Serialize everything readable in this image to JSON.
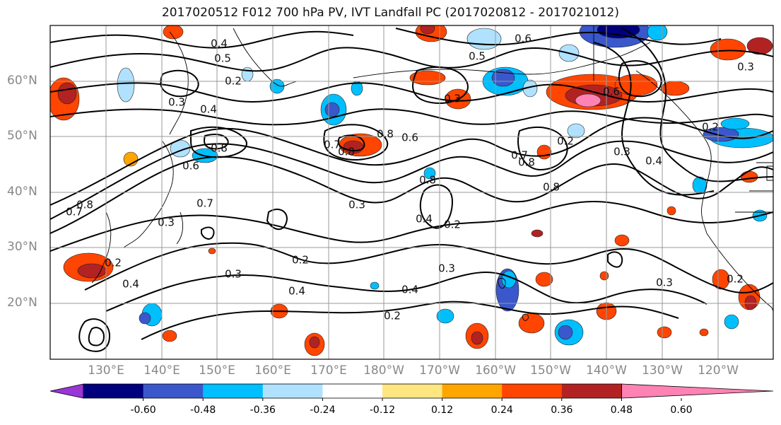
{
  "title": "2017020512 F012 700 hPa PV, IVT Landfall PC (2017020812 - 2017021012)",
  "latitude_labels": [
    "60°N",
    "50°N",
    "40°N",
    "30°N",
    "20°N"
  ],
  "longitude_labels": [
    "130°E",
    "140°E",
    "150°E",
    "160°E",
    "170°E",
    "180°W",
    "170°W",
    "160°W",
    "150°W",
    "140°W",
    "130°W",
    "120°W"
  ],
  "colorbar": {
    "colors": [
      "#9a35d6",
      "#00007f",
      "#3a58cc",
      "#00bfff",
      "#b0e2ff",
      "#ffffff",
      "#ffe680",
      "#ffa500",
      "#ff4500",
      "#b22222",
      "#ff82b4"
    ],
    "tick_labels": [
      "-0.60",
      "-0.48",
      "-0.36",
      "-0.24",
      "-0.12",
      "0.12",
      "0.24",
      "0.36",
      "0.48",
      "0.60"
    ]
  },
  "contour_labels": [
    "0.4",
    "0.5",
    "0.2",
    "0.3",
    "0.4",
    "0.8",
    "0.6",
    "0.7",
    "0.2",
    "0.4",
    "0.3",
    "0.2",
    "0.4",
    "0.8",
    "0.7",
    "0.8",
    "0.6",
    "0.8",
    "0.3",
    "0.4",
    "0.2",
    "0.3",
    "0.4",
    "0.2",
    "0.3",
    "0.6",
    "0.5",
    "0.8",
    "0.7",
    "0.6",
    "0.8",
    "0.2",
    "0.3",
    "0.2",
    "0.3",
    "0.4",
    "0.2",
    "0.3",
    "0.8",
    "0.7",
    "0.3"
  ]
}
